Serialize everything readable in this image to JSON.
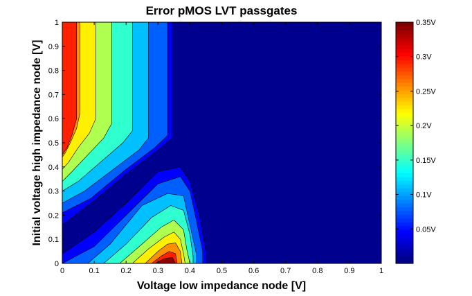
{
  "chart_data": {
    "type": "contour",
    "title": "Error pMOS LVT passgates",
    "xlabel": "Voltage low impedance node [V]",
    "ylabel": "Initial voltage high impedance node [V]",
    "xlim": [
      0,
      1
    ],
    "ylim": [
      0,
      1
    ],
    "xticks": [
      "0",
      "0.1",
      "0.2",
      "0.3",
      "0.4",
      "0.5",
      "0.6",
      "0.7",
      "0.8",
      "0.9",
      "1"
    ],
    "yticks": [
      "0",
      "0.1",
      "0.2",
      "0.3",
      "0.4",
      "0.5",
      "0.6",
      "0.7",
      "0.8",
      "0.9",
      "1"
    ],
    "grid": false,
    "colormap": "jet",
    "colorbar": {
      "range": [
        0,
        0.35
      ],
      "ticks": [
        {
          "value": 0.05,
          "label": "0.05V"
        },
        {
          "value": 0.1,
          "label": "0.1V"
        },
        {
          "value": 0.15,
          "label": "0.15V"
        },
        {
          "value": 0.2,
          "label": "0.2V"
        },
        {
          "value": 0.25,
          "label": "0.25V"
        },
        {
          "value": 0.3,
          "label": "0.3V"
        },
        {
          "value": 0.35,
          "label": "0.35V"
        }
      ]
    },
    "contour_levels": [
      0.035,
      0.07,
      0.105,
      0.14,
      0.175,
      0.21,
      0.245,
      0.28,
      0.315
    ],
    "level_colors": [
      "#00008F",
      "#0000FF",
      "#0060FF",
      "#00C0FF",
      "#30FFCF",
      "#AFFF50",
      "#FFEF00",
      "#FF9000",
      "#FF2000",
      "#8F0000"
    ],
    "regions": [
      {
        "name": "upper-left",
        "description_free": true,
        "bands": [
          {
            "level": 8,
            "x_left": 0.0,
            "x_right": 0.045,
            "y_bottom": 0.43,
            "curve_out": 0.025
          },
          {
            "level": 7,
            "x_left": 0.045,
            "x_right": 0.095,
            "y_bottom": 0.38,
            "curve_out": 0.06
          },
          {
            "level": 6,
            "x_left": 0.095,
            "x_right": 0.145,
            "y_bottom": 0.33,
            "curve_out": 0.09
          },
          {
            "level": 5,
            "x_left": 0.145,
            "x_right": 0.195,
            "y_bottom": 0.27,
            "curve_out": 0.12
          },
          {
            "level": 4,
            "x_left": 0.195,
            "x_right": 0.245,
            "y_bottom": 0.21,
            "curve_out": 0.15
          },
          {
            "level": 3,
            "x_left": 0.245,
            "x_right": 0.345,
            "y_bottom": 0.15,
            "curve_out": 0.18
          }
        ]
      },
      {
        "name": "lower-peak",
        "peak": {
          "x": 0.34,
          "y": 0.0
        }
      }
    ]
  }
}
